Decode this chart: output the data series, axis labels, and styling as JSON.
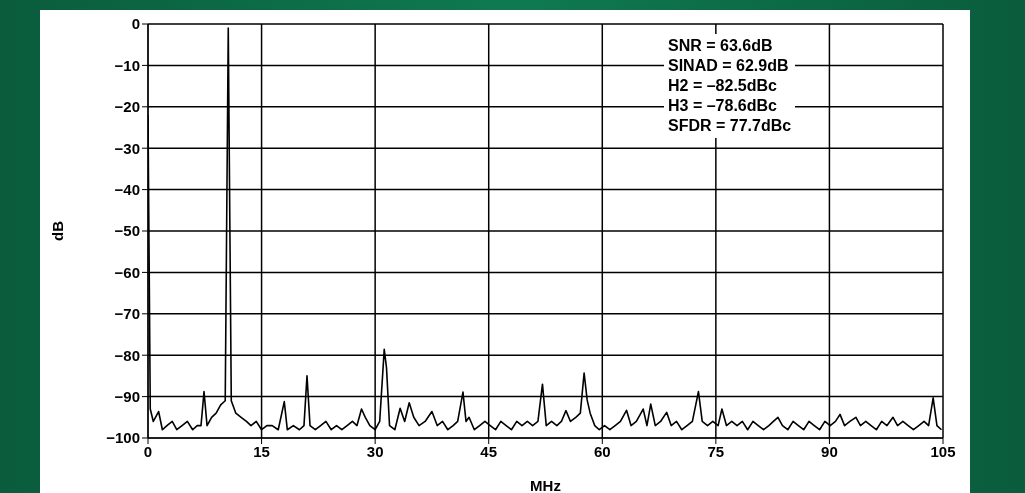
{
  "chart_data": {
    "type": "line",
    "xlabel": "MHz",
    "ylabel": "dB",
    "annotations": [
      "SNR = 63.6dB",
      "SINAD = 62.9dB",
      "H2 = –82.5dBc",
      "H3 = –78.6dBc",
      "SFDR = 77.7dBc"
    ],
    "xlim": [
      0,
      105
    ],
    "xticks": [
      0,
      15,
      30,
      45,
      60,
      75,
      90,
      105
    ],
    "ylim": [
      -100,
      0
    ],
    "yticks": [
      -100,
      -90,
      -80,
      -70,
      -60,
      -50,
      -40,
      -30,
      -20,
      -10,
      0
    ],
    "grid": true,
    "marker": "none",
    "line_style": "solid",
    "color": "#000000",
    "x": [
      0,
      0.3,
      0.7,
      1.4,
      1.9,
      2.5,
      3.2,
      3.8,
      4.5,
      5.2,
      5.9,
      6.5,
      7.0,
      7.4,
      7.8,
      8.4,
      9.0,
      9.6,
      10.2,
      10.6,
      11.0,
      11.6,
      12.3,
      13.0,
      13.6,
      14.3,
      15.0,
      15.7,
      16.4,
      17.2,
      18.0,
      18.4,
      19.2,
      20.0,
      20.6,
      21.0,
      21.4,
      22.1,
      22.8,
      23.5,
      24.2,
      24.9,
      25.6,
      26.3,
      27.0,
      27.6,
      28.2,
      28.7,
      29.3,
      30.0,
      30.6,
      31.2,
      31.5,
      31.9,
      32.6,
      33.3,
      33.9,
      34.5,
      35.1,
      35.8,
      36.6,
      37.5,
      38.2,
      38.9,
      39.6,
      40.3,
      40.9,
      41.6,
      42.0,
      42.4,
      43.1,
      43.8,
      44.5,
      45.2,
      45.9,
      46.6,
      47.3,
      48.0,
      48.7,
      49.4,
      50.1,
      50.8,
      51.5,
      52.1,
      52.6,
      53.3,
      54.0,
      54.6,
      55.2,
      55.8,
      56.5,
      57.1,
      57.6,
      58.0,
      58.4,
      59.0,
      59.6,
      60.3,
      61.0,
      61.7,
      62.4,
      63.2,
      63.8,
      64.5,
      65.4,
      65.9,
      66.4,
      67.0,
      67.7,
      68.5,
      69.1,
      69.8,
      70.5,
      71.2,
      71.9,
      72.7,
      73.2,
      73.9,
      74.6,
      75.3,
      75.8,
      76.4,
      77.1,
      77.8,
      78.5,
      79.2,
      79.9,
      80.6,
      81.3,
      82.0,
      82.6,
      83.2,
      83.8,
      84.5,
      85.2,
      85.9,
      86.6,
      87.3,
      88.0,
      88.7,
      89.4,
      90.1,
      90.8,
      91.4,
      92.0,
      92.7,
      93.5,
      94.1,
      94.8,
      95.5,
      96.2,
      96.9,
      97.6,
      98.4,
      99.0,
      99.7,
      100.4,
      101.1,
      101.8,
      102.5,
      103.1,
      103.7,
      104.2,
      104.8
    ],
    "values": [
      -22,
      -93,
      -96,
      -93.6,
      -98,
      -97,
      -96,
      -98,
      -97,
      -96,
      -98,
      -97,
      -97,
      -88.8,
      -97,
      -95,
      -94,
      -92,
      -91,
      -1,
      -91,
      -94,
      -95,
      -96,
      -97,
      -96,
      -98,
      -97,
      -97,
      -98,
      -91.2,
      -98,
      -97,
      -98,
      -97,
      -85,
      -97,
      -98,
      -97,
      -96,
      -98,
      -97,
      -98,
      -97,
      -96,
      -97,
      -93,
      -95,
      -97,
      -98,
      -96,
      -78.6,
      -83,
      -97,
      -98,
      -92.8,
      -96,
      -91.5,
      -95,
      -97,
      -96,
      -93.6,
      -97,
      -96,
      -98,
      -97,
      -96,
      -88.9,
      -96,
      -95,
      -98,
      -97,
      -96,
      -97,
      -98,
      -96,
      -97,
      -98,
      -96,
      -97,
      -96,
      -97,
      -96,
      -87,
      -97,
      -96,
      -97,
      -96,
      -93.4,
      -96,
      -95,
      -94,
      -84.3,
      -90.8,
      -94,
      -97,
      -98,
      -97,
      -98,
      -97,
      -96,
      -93.3,
      -97,
      -96,
      -93,
      -97,
      -91.8,
      -97,
      -96,
      -93.8,
      -97,
      -96,
      -98,
      -97,
      -96,
      -88.8,
      -96,
      -97,
      -96,
      -97,
      -93,
      -97,
      -96,
      -97,
      -96,
      -98,
      -96,
      -97,
      -98,
      -97,
      -96,
      -95,
      -97,
      -98,
      -96,
      -97,
      -98,
      -96,
      -97,
      -98,
      -96,
      -97,
      -96,
      -94.3,
      -97,
      -96,
      -95,
      -97,
      -96,
      -97,
      -98,
      -96,
      -97,
      -95,
      -97,
      -96,
      -97,
      -98,
      -97,
      -96,
      -97,
      -90.3,
      -97,
      -98
    ]
  }
}
